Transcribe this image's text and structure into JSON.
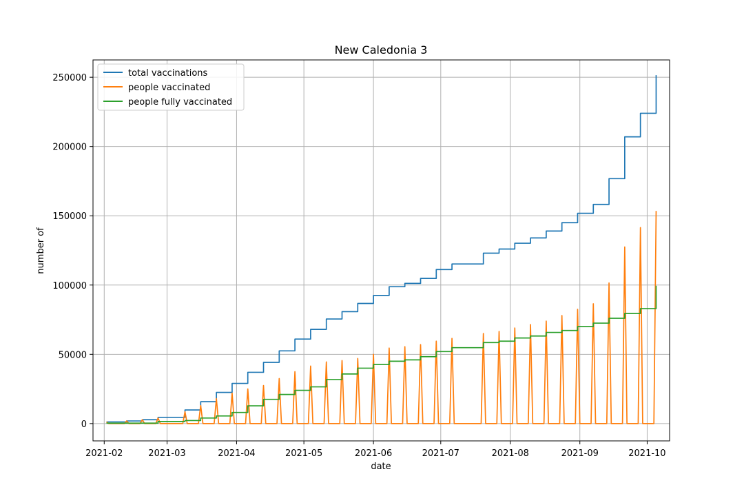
{
  "chart_data": {
    "type": "line",
    "title": "New Caledonia 3",
    "xlabel": "date",
    "ylabel": "number of",
    "x_axis": "date",
    "xlim": [
      "2021-01-27",
      "2021-10-11"
    ],
    "ylim": [
      -12500,
      262500
    ],
    "grid": true,
    "legend_position": "top-left",
    "x_ticks": [
      "2021-02",
      "2021-03",
      "2021-04",
      "2021-05",
      "2021-06",
      "2021-07",
      "2021-08",
      "2021-09",
      "2021-10"
    ],
    "y_ticks": [
      0,
      50000,
      100000,
      150000,
      200000,
      250000
    ],
    "series": [
      {
        "name": "total vaccinations",
        "color": "#1f77b4",
        "interpolation": "steps-post",
        "points": [
          [
            "2021-02-02",
            1200
          ],
          [
            "2021-02-11",
            1900
          ],
          [
            "2021-02-18",
            2800
          ],
          [
            "2021-02-25",
            4500
          ],
          [
            "2021-03-04",
            4500
          ],
          [
            "2021-03-09",
            9800
          ],
          [
            "2021-03-16",
            15800
          ],
          [
            "2021-03-23",
            22500
          ],
          [
            "2021-03-30",
            29000
          ],
          [
            "2021-04-06",
            37000
          ],
          [
            "2021-04-13",
            44200
          ],
          [
            "2021-04-20",
            52500
          ],
          [
            "2021-04-27",
            61000
          ],
          [
            "2021-05-04",
            68000
          ],
          [
            "2021-05-11",
            75500
          ],
          [
            "2021-05-18",
            80800
          ],
          [
            "2021-05-25",
            86700
          ],
          [
            "2021-06-01",
            92500
          ],
          [
            "2021-06-08",
            98800
          ],
          [
            "2021-06-15",
            101200
          ],
          [
            "2021-06-22",
            104800
          ],
          [
            "2021-06-29",
            111200
          ],
          [
            "2021-07-06",
            115200
          ],
          [
            "2021-07-20",
            123000
          ],
          [
            "2021-07-27",
            126000
          ],
          [
            "2021-08-03",
            130200
          ],
          [
            "2021-08-10",
            134000
          ],
          [
            "2021-08-17",
            139000
          ],
          [
            "2021-08-24",
            145000
          ],
          [
            "2021-08-31",
            151800
          ],
          [
            "2021-09-07",
            158200
          ],
          [
            "2021-09-14",
            176800
          ],
          [
            "2021-09-21",
            207000
          ],
          [
            "2021-09-28",
            224000
          ],
          [
            "2021-10-05",
            251500
          ]
        ]
      },
      {
        "name": "people vaccinated",
        "color": "#ff7f0e",
        "interpolation": "spikes",
        "spikes": [
          [
            "2021-02-02",
            1200
          ],
          [
            "2021-02-11",
            1900
          ],
          [
            "2021-02-18",
            2800
          ],
          [
            "2021-02-25",
            4000
          ],
          [
            "2021-03-09",
            8500
          ],
          [
            "2021-03-16",
            13000
          ],
          [
            "2021-03-23",
            18000
          ],
          [
            "2021-03-30",
            22000
          ],
          [
            "2021-04-06",
            25000
          ],
          [
            "2021-04-13",
            27500
          ],
          [
            "2021-04-20",
            32500
          ],
          [
            "2021-04-27",
            37500
          ],
          [
            "2021-05-04",
            41500
          ],
          [
            "2021-05-11",
            44500
          ],
          [
            "2021-05-18",
            45500
          ],
          [
            "2021-05-25",
            47000
          ],
          [
            "2021-06-01",
            50000
          ],
          [
            "2021-06-08",
            54500
          ],
          [
            "2021-06-15",
            55500
          ],
          [
            "2021-06-22",
            57000
          ],
          [
            "2021-06-29",
            59500
          ],
          [
            "2021-07-06",
            61500
          ],
          [
            "2021-07-20",
            65000
          ],
          [
            "2021-07-27",
            66500
          ],
          [
            "2021-08-03",
            69000
          ],
          [
            "2021-08-10",
            71500
          ],
          [
            "2021-08-17",
            74000
          ],
          [
            "2021-08-24",
            78000
          ],
          [
            "2021-08-31",
            82500
          ],
          [
            "2021-09-07",
            86500
          ],
          [
            "2021-09-14",
            101500
          ],
          [
            "2021-09-21",
            127500
          ],
          [
            "2021-09-28",
            141500
          ],
          [
            "2021-10-05",
            153500
          ]
        ]
      },
      {
        "name": "people fully vaccinated",
        "color": "#2ca02c",
        "interpolation": "steps-post",
        "points": [
          [
            "2021-02-02",
            300
          ],
          [
            "2021-02-25",
            1500
          ],
          [
            "2021-03-09",
            2200
          ],
          [
            "2021-03-16",
            4000
          ],
          [
            "2021-03-23",
            5500
          ],
          [
            "2021-03-30",
            8000
          ],
          [
            "2021-04-06",
            12800
          ],
          [
            "2021-04-13",
            17500
          ],
          [
            "2021-04-20",
            21000
          ],
          [
            "2021-04-27",
            24000
          ],
          [
            "2021-05-04",
            26500
          ],
          [
            "2021-05-11",
            31800
          ],
          [
            "2021-05-18",
            35800
          ],
          [
            "2021-05-25",
            40000
          ],
          [
            "2021-06-01",
            42600
          ],
          [
            "2021-06-08",
            45000
          ],
          [
            "2021-06-15",
            46000
          ],
          [
            "2021-06-22",
            48300
          ],
          [
            "2021-06-29",
            52000
          ],
          [
            "2021-07-06",
            54800
          ],
          [
            "2021-07-20",
            58500
          ],
          [
            "2021-07-27",
            59500
          ],
          [
            "2021-08-03",
            61800
          ],
          [
            "2021-08-10",
            63200
          ],
          [
            "2021-08-17",
            65800
          ],
          [
            "2021-08-24",
            67200
          ],
          [
            "2021-08-31",
            70000
          ],
          [
            "2021-09-07",
            72500
          ],
          [
            "2021-09-14",
            76000
          ],
          [
            "2021-09-21",
            79500
          ],
          [
            "2021-09-28",
            83000
          ],
          [
            "2021-10-05",
            99500
          ]
        ]
      }
    ]
  }
}
